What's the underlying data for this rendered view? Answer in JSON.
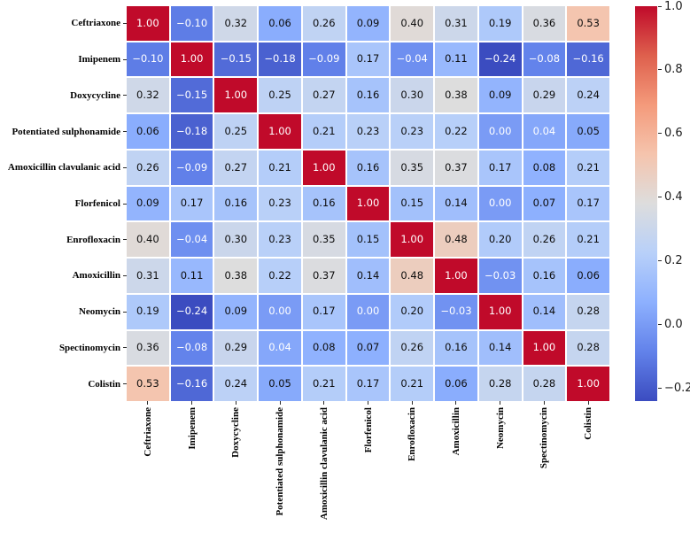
{
  "chart_data": {
    "type": "heatmap",
    "title": "",
    "categories": [
      "Ceftriaxone",
      "Imipenem",
      "Doxycycline",
      "Potentiated sulphonamide",
      "Amoxicillin clavulanic acid",
      "Florfenicol",
      "Enrofloxacin",
      "Amoxicillin",
      "Neomycin",
      "Spectinomycin",
      "Colistin"
    ],
    "matrix": [
      [
        1.0,
        -0.1,
        0.32,
        0.06,
        0.26,
        0.09,
        0.4,
        0.31,
        0.19,
        0.36,
        0.53
      ],
      [
        -0.1,
        1.0,
        -0.15,
        -0.18,
        -0.09,
        0.17,
        -0.04,
        0.11,
        -0.24,
        -0.08,
        -0.16
      ],
      [
        0.32,
        -0.15,
        1.0,
        0.25,
        0.27,
        0.16,
        0.3,
        0.38,
        0.09,
        0.29,
        0.24
      ],
      [
        0.06,
        -0.18,
        0.25,
        1.0,
        0.21,
        0.23,
        0.23,
        0.22,
        0.0,
        0.04,
        0.05
      ],
      [
        0.26,
        -0.09,
        0.27,
        0.21,
        1.0,
        0.16,
        0.35,
        0.37,
        0.17,
        0.08,
        0.21
      ],
      [
        0.09,
        0.17,
        0.16,
        0.23,
        0.16,
        1.0,
        0.15,
        0.14,
        0.0,
        0.07,
        0.17
      ],
      [
        0.4,
        -0.04,
        0.3,
        0.23,
        0.35,
        0.15,
        1.0,
        0.48,
        0.2,
        0.26,
        0.21
      ],
      [
        0.31,
        0.11,
        0.38,
        0.22,
        0.37,
        0.14,
        0.48,
        1.0,
        -0.03,
        0.16,
        0.06
      ],
      [
        0.19,
        -0.24,
        0.09,
        0.0,
        0.17,
        0.0,
        0.2,
        -0.03,
        1.0,
        0.14,
        0.28
      ],
      [
        0.36,
        -0.08,
        0.29,
        0.04,
        0.08,
        0.07,
        0.26,
        0.16,
        0.14,
        1.0,
        0.28
      ],
      [
        0.53,
        -0.16,
        0.24,
        0.05,
        0.21,
        0.17,
        0.21,
        0.06,
        0.28,
        0.28,
        1.0
      ]
    ],
    "vmin": -0.24,
    "vmax": 1.0,
    "annotation_format": "%.2f",
    "grid": false,
    "legend_position": "right-colorbar",
    "colorbar_ticks": [
      {
        "value": 1.0,
        "label": "1.0"
      },
      {
        "value": 0.8,
        "label": "0.8"
      },
      {
        "value": 0.6,
        "label": "0.6"
      },
      {
        "value": 0.4,
        "label": "0.4"
      },
      {
        "value": 0.2,
        "label": "0.2"
      },
      {
        "value": 0.0,
        "label": "0.0"
      },
      {
        "value": -0.2,
        "label": "−0.2"
      }
    ],
    "colormap": {
      "name": "coolwarm",
      "stops": [
        {
          "t": 0.0,
          "color": "#3b4cc0"
        },
        {
          "t": 0.125,
          "color": "#6282ea"
        },
        {
          "t": 0.25,
          "color": "#8db0fe"
        },
        {
          "t": 0.375,
          "color": "#b8d0f9"
        },
        {
          "t": 0.5,
          "color": "#dddddd"
        },
        {
          "t": 0.625,
          "color": "#f5c4ad"
        },
        {
          "t": 0.75,
          "color": "#f49a7b"
        },
        {
          "t": 0.875,
          "color": "#de604d"
        },
        {
          "t": 1.0,
          "color": "#c00a2a"
        }
      ]
    }
  },
  "style": {
    "background": "#ffffff",
    "annot_dark": "#0d0d0d",
    "annot_light": "#ffffff",
    "axis_label_color": "#000000",
    "tick_mark_color": "#2b2b2b",
    "colorbar_tick_label_color": "#1a1a1a"
  }
}
